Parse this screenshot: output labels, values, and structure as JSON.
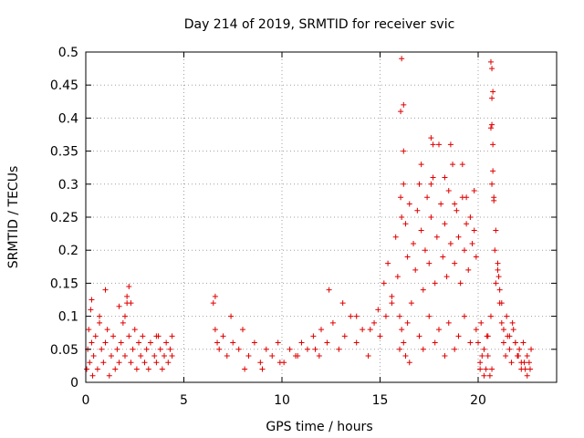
{
  "chart_data": {
    "type": "scatter",
    "title": "Day 214 of 2019, SRMTID for receiver svic",
    "xlabel": "GPS time / hours",
    "ylabel": "SRMTID / TECUs",
    "xlim": [
      0,
      24
    ],
    "ylim": [
      0,
      0.5
    ],
    "x_ticks": [
      "0",
      "5",
      "10",
      "15",
      "20"
    ],
    "y_ticks": [
      "0",
      "0.05",
      "0.1",
      "0.15",
      "0.2",
      "0.25",
      "0.3",
      "0.35",
      "0.4",
      "0.45",
      "0.5"
    ],
    "grid": true,
    "marker": "+",
    "color": "#e00000",
    "series": [
      {
        "x": [
          0.05,
          0.1,
          0.15,
          0.2,
          0.25,
          0.3,
          0.35,
          0.4,
          0.5,
          0.6,
          0.7,
          0.8,
          0.9,
          1.0,
          1.1,
          1.2,
          1.3,
          1.4,
          1.5,
          1.6,
          1.7,
          1.8,
          1.9,
          2.0,
          2.1,
          2.2,
          2.3,
          2.4,
          2.5,
          2.6,
          2.7,
          2.8,
          2.9,
          3.0,
          3.1,
          3.2,
          3.3,
          3.5,
          3.6,
          3.7,
          3.8,
          3.9,
          4.0,
          4.1,
          4.2,
          4.3,
          4.4,
          0.3,
          0.7,
          1.0,
          2.1,
          2.2,
          2.3,
          2.0,
          1.7,
          3.6,
          4.4,
          6.5,
          6.6,
          6.7,
          6.8,
          7.0,
          7.2,
          7.5,
          7.8,
          8.0,
          8.3,
          8.6,
          8.9,
          9.2,
          9.5,
          9.8,
          10.1,
          10.4,
          10.7,
          11.0,
          11.3,
          11.6,
          11.9,
          12.0,
          12.3,
          12.6,
          12.9,
          13.2,
          13.5,
          13.8,
          14.1,
          14.4,
          14.7,
          15.0,
          15.3,
          15.6,
          6.6,
          7.4,
          8.1,
          9.0,
          9.9,
          10.8,
          11.7,
          12.4,
          13.1,
          13.8,
          14.5,
          14.9,
          15.2,
          15.4,
          15.6,
          15.8,
          15.9,
          16.0,
          16.05,
          16.1,
          16.2,
          16.3,
          16.4,
          16.5,
          16.6,
          16.7,
          16.8,
          16.9,
          17.0,
          17.1,
          17.2,
          17.3,
          17.4,
          17.5,
          17.6,
          17.7,
          17.8,
          17.9,
          18.0,
          18.1,
          18.2,
          18.3,
          18.4,
          18.5,
          18.6,
          18.7,
          18.8,
          18.9,
          19.0,
          19.1,
          19.2,
          19.3,
          19.4,
          19.5,
          19.6,
          19.7,
          19.8,
          19.9,
          16.0,
          16.1,
          16.2,
          16.3,
          16.4,
          16.5,
          17.0,
          17.2,
          17.5,
          17.8,
          18.0,
          18.3,
          18.5,
          18.8,
          19.0,
          19.3,
          19.6,
          19.9,
          16.2,
          16.05,
          17.6,
          17.7,
          18.6,
          19.2,
          19.8,
          16.1,
          16.2,
          17.1,
          17.6,
          18.3,
          18.8,
          19.4,
          20.0,
          20.1,
          20.2,
          20.3,
          20.4,
          20.5,
          20.6,
          20.65,
          20.7,
          20.75,
          20.8,
          20.85,
          20.9,
          21.0,
          21.1,
          21.2,
          21.3,
          21.4,
          21.5,
          21.6,
          21.7,
          21.8,
          21.9,
          22.0,
          22.1,
          22.2,
          22.3,
          22.4,
          22.5,
          22.6,
          22.7,
          20.65,
          20.7,
          20.75,
          20.7,
          20.65,
          20.7,
          20.75,
          20.8,
          20.9,
          21.0,
          21.1,
          21.2,
          20.1,
          20.3,
          20.5,
          20.7,
          21.3,
          21.6,
          21.9,
          22.2,
          22.5,
          20.15,
          20.45,
          21.05,
          21.45,
          21.75,
          22.05,
          22.35,
          22.65
        ],
        "y": [
          0.02,
          0.05,
          0.08,
          0.03,
          0.11,
          0.06,
          0.01,
          0.04,
          0.07,
          0.02,
          0.09,
          0.05,
          0.03,
          0.06,
          0.08,
          0.01,
          0.04,
          0.07,
          0.02,
          0.05,
          0.03,
          0.06,
          0.09,
          0.04,
          0.12,
          0.07,
          0.03,
          0.05,
          0.08,
          0.02,
          0.06,
          0.04,
          0.07,
          0.03,
          0.05,
          0.02,
          0.06,
          0.04,
          0.03,
          0.07,
          0.05,
          0.02,
          0.04,
          0.06,
          0.03,
          0.05,
          0.04,
          0.125,
          0.1,
          0.14,
          0.13,
          0.145,
          0.12,
          0.1,
          0.115,
          0.07,
          0.07,
          0.12,
          0.08,
          0.06,
          0.05,
          0.07,
          0.04,
          0.06,
          0.05,
          0.08,
          0.04,
          0.06,
          0.03,
          0.05,
          0.04,
          0.06,
          0.03,
          0.05,
          0.04,
          0.06,
          0.05,
          0.07,
          0.04,
          0.08,
          0.06,
          0.09,
          0.05,
          0.07,
          0.1,
          0.06,
          0.08,
          0.04,
          0.09,
          0.07,
          0.1,
          0.12,
          0.13,
          0.1,
          0.02,
          0.02,
          0.03,
          0.04,
          0.05,
          0.14,
          0.12,
          0.1,
          0.08,
          0.11,
          0.15,
          0.18,
          0.13,
          0.22,
          0.16,
          0.1,
          0.28,
          0.25,
          0.3,
          0.24,
          0.19,
          0.27,
          0.12,
          0.21,
          0.17,
          0.26,
          0.3,
          0.23,
          0.14,
          0.2,
          0.28,
          0.18,
          0.25,
          0.31,
          0.15,
          0.22,
          0.36,
          0.27,
          0.19,
          0.24,
          0.16,
          0.29,
          0.21,
          0.33,
          0.18,
          0.26,
          0.22,
          0.15,
          0.28,
          0.2,
          0.24,
          0.17,
          0.25,
          0.21,
          0.23,
          0.19,
          0.05,
          0.08,
          0.06,
          0.04,
          0.09,
          0.03,
          0.07,
          0.05,
          0.1,
          0.06,
          0.08,
          0.04,
          0.09,
          0.05,
          0.07,
          0.1,
          0.06,
          0.08,
          0.42,
          0.41,
          0.37,
          0.36,
          0.36,
          0.33,
          0.29,
          0.49,
          0.35,
          0.33,
          0.3,
          0.31,
          0.27,
          0.28,
          0.06,
          0.03,
          0.04,
          0.05,
          0.02,
          0.07,
          0.01,
          0.1,
          0.3,
          0.36,
          0.28,
          0.2,
          0.15,
          0.18,
          0.12,
          0.09,
          0.06,
          0.04,
          0.07,
          0.05,
          0.03,
          0.08,
          0.06,
          0.04,
          0.05,
          0.03,
          0.06,
          0.02,
          0.04,
          0.03,
          0.05,
          0.485,
          0.475,
          0.44,
          0.43,
          0.385,
          0.39,
          0.32,
          0.275,
          0.23,
          0.17,
          0.14,
          0.12,
          0.02,
          0.01,
          0.04,
          0.02,
          0.08,
          0.07,
          0.06,
          0.02,
          0.01,
          0.09,
          0.07,
          0.16,
          0.1,
          0.09,
          0.04,
          0.03,
          0.02
        ]
      }
    ]
  }
}
